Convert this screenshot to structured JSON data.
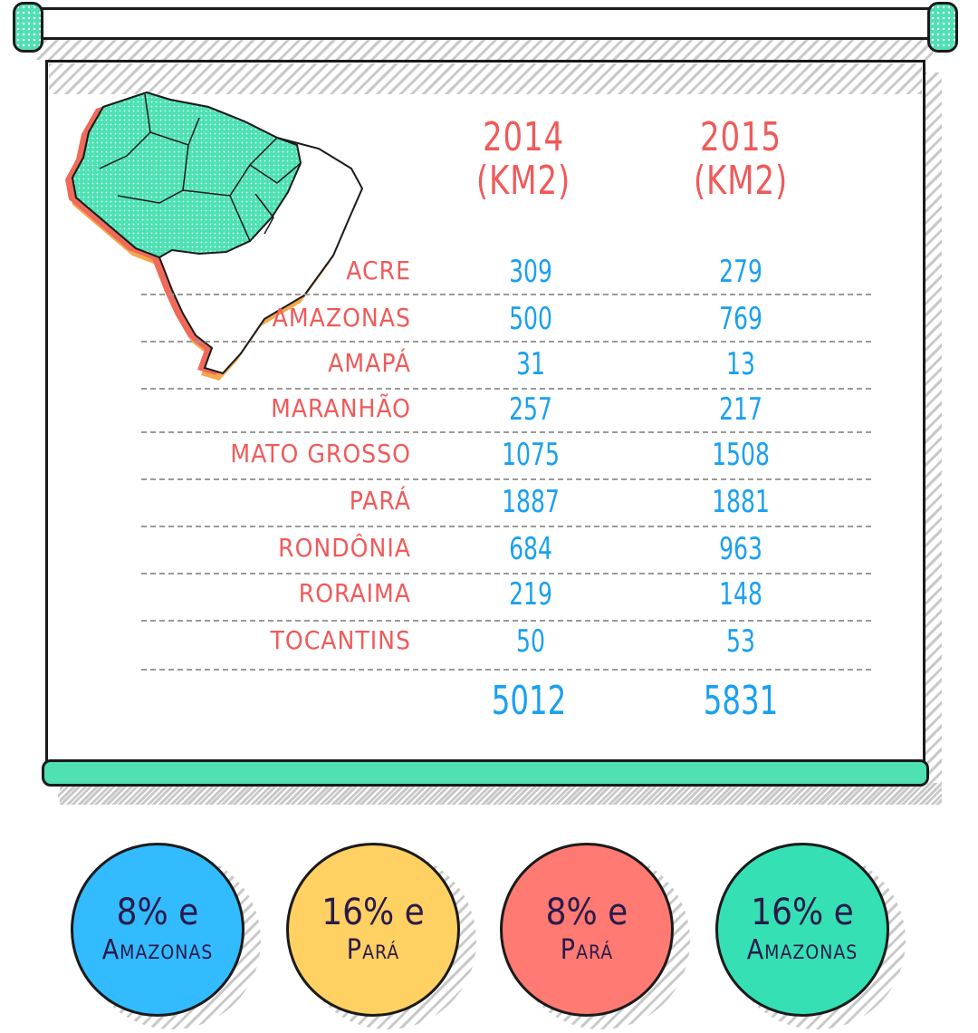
{
  "table": {
    "col_2014": {
      "year": "2014",
      "unit": "(KM2)"
    },
    "col_2015": {
      "year": "2015",
      "unit": "(KM2)"
    },
    "rows": [
      {
        "state": "ACRE",
        "v2014": "309",
        "v2015": "279"
      },
      {
        "state": "AMAZONAS",
        "v2014": "500",
        "v2015": "769"
      },
      {
        "state": "AMAPÁ",
        "v2014": "31",
        "v2015": "13"
      },
      {
        "state": "MARANHÃO",
        "v2014": "257",
        "v2015": "217"
      },
      {
        "state": "MATO GROSSO",
        "v2014": "1075",
        "v2015": "1508"
      },
      {
        "state": "PARÁ",
        "v2014": "1887",
        "v2015": "1881"
      },
      {
        "state": "RONDÔNIA",
        "v2014": "684",
        "v2015": "963"
      },
      {
        "state": "RORAIMA",
        "v2014": "219",
        "v2015": "148"
      },
      {
        "state": "TOCANTINS",
        "v2014": "50",
        "v2015": "53"
      }
    ],
    "totals": {
      "v2014": "5012",
      "v2015": "5831"
    }
  },
  "options": [
    {
      "line1": "8% e",
      "line2": "Amazonas",
      "color": "#33bbff"
    },
    {
      "line1": "16% e",
      "line2": "Pará",
      "color": "#ffd062"
    },
    {
      "line1": "8% e",
      "line2": "Pará",
      "color": "#ff7a72"
    },
    {
      "line1": "16% e",
      "line2": "Amazonas",
      "color": "#35e0b4"
    }
  ],
  "colors": {
    "header": "#f05a5a",
    "value": "#1aa0f0",
    "accent": "#4fe0b4",
    "answer_text": "#2a1a4a"
  }
}
